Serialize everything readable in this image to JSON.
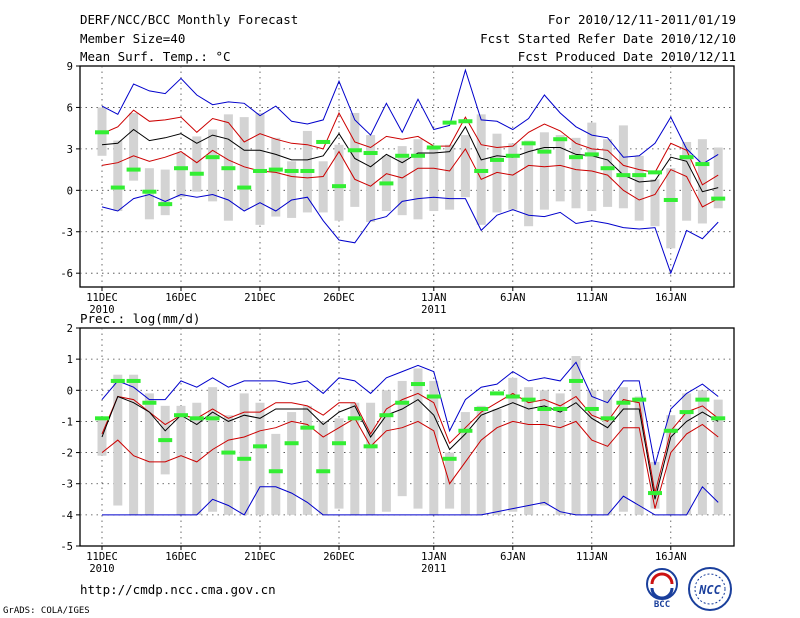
{
  "header": {
    "title": "DERF/NCC/BCC Monthly Forecast",
    "member_size": "Member Size=40",
    "variable": "Mean Surf. Temp.: °C",
    "period": "For 2010/12/11-2011/01/19",
    "started": "Fcst Started Refer Date 2010/12/10",
    "produced": "Fcst Produced Date 2010/12/11"
  },
  "footer": {
    "url": "http://cmdp.ncc.cma.gov.cn",
    "grads": "GrADS: COLA/IGES",
    "logo_bcc": "BCC",
    "logo_ncc": "NCC"
  },
  "colors": {
    "max_min": "#0000cc",
    "spread": "#cc0000",
    "mean": "#000000",
    "box": "#d3d3d3",
    "obs": "#33ee33",
    "prec_floor": "#7a007a"
  },
  "chart_data": [
    {
      "type": "box",
      "title": "Mean Surf. Temp.: °C",
      "ylim": [
        -7,
        9
      ],
      "yticks": [
        9,
        6,
        3,
        0,
        -3,
        -6
      ],
      "x_tick_labels": [
        {
          "day": 0,
          "label": "11DEC",
          "sub": "2010"
        },
        {
          "day": 5,
          "label": "16DEC",
          "sub": ""
        },
        {
          "day": 10,
          "label": "21DEC",
          "sub": ""
        },
        {
          "day": 15,
          "label": "26DEC",
          "sub": ""
        },
        {
          "day": 21,
          "label": "1JAN",
          "sub": "2011"
        },
        {
          "day": 26,
          "label": "6JAN",
          "sub": ""
        },
        {
          "day": 31,
          "label": "11JAN",
          "sub": ""
        },
        {
          "day": 36,
          "label": "16JAN",
          "sub": ""
        }
      ],
      "series": [
        {
          "name": "max",
          "values": [
            6.1,
            5.5,
            7.7,
            7.2,
            7.0,
            8.1,
            6.9,
            6.2,
            6.4,
            6.3,
            5.4,
            6.1,
            5.0,
            4.8,
            5.1,
            7.9,
            5.1,
            4.0,
            6.3,
            4.2,
            6.6,
            4.4,
            4.7,
            8.7,
            5.1,
            5.0,
            4.4,
            5.2,
            6.9,
            5.6,
            4.6,
            4.0,
            3.8,
            2.4,
            2.5,
            3.4,
            5.3,
            3.0,
            1.9,
            2.6
          ]
        },
        {
          "name": "upper",
          "values": [
            4.1,
            4.6,
            5.8,
            5.0,
            5.1,
            5.3,
            4.2,
            5.2,
            4.9,
            3.5,
            4.1,
            3.7,
            3.4,
            3.3,
            3.0,
            5.6,
            3.5,
            3.1,
            3.9,
            3.7,
            3.9,
            3.2,
            3.2,
            5.3,
            3.3,
            3.1,
            3.2,
            4.2,
            4.8,
            4.3,
            3.4,
            3.0,
            2.9,
            1.8,
            1.5,
            1.3,
            3.4,
            2.9,
            0.4,
            1.1
          ]
        },
        {
          "name": "mean",
          "values": [
            3.3,
            3.4,
            4.4,
            3.6,
            3.8,
            4.1,
            3.4,
            4.0,
            3.7,
            2.9,
            2.9,
            2.6,
            2.2,
            2.2,
            2.5,
            4.1,
            2.3,
            1.7,
            2.6,
            2.0,
            2.7,
            2.7,
            2.8,
            4.6,
            2.2,
            2.5,
            2.4,
            2.8,
            3.1,
            3.1,
            2.6,
            2.5,
            2.2,
            1.1,
            0.6,
            0.7,
            2.4,
            2.1,
            -0.1,
            0.2
          ]
        },
        {
          "name": "lower",
          "values": [
            1.8,
            2.0,
            2.5,
            2.1,
            2.4,
            2.8,
            2.0,
            2.9,
            2.2,
            1.7,
            1.4,
            1.3,
            1.0,
            0.9,
            1.0,
            2.8,
            0.8,
            0.3,
            1.2,
            0.9,
            1.6,
            1.6,
            1.4,
            3.0,
            0.8,
            1.3,
            1.1,
            1.8,
            1.7,
            1.8,
            1.5,
            1.4,
            1.1,
            0.0,
            -0.7,
            -0.3,
            1.5,
            1.0,
            -1.2,
            -0.6
          ]
        },
        {
          "name": "min",
          "values": [
            -1.2,
            -1.5,
            -0.6,
            -0.3,
            -0.8,
            -0.3,
            -0.5,
            -0.3,
            -0.7,
            -1.5,
            -0.9,
            -1.5,
            -0.7,
            -0.5,
            -2.2,
            -3.6,
            -3.8,
            -2.2,
            -1.9,
            -0.8,
            -0.6,
            -0.5,
            -0.6,
            -0.6,
            -2.9,
            -1.8,
            -1.4,
            -1.8,
            -1.9,
            -1.6,
            -2.4,
            -2.2,
            -2.4,
            -2.7,
            -2.8,
            -2.7,
            -6.0,
            -2.9,
            -3.5,
            -2.3
          ]
        },
        {
          "name": "box_high",
          "values": [
            6.0,
            3.6,
            5.6,
            1.6,
            1.5,
            2.7,
            3.9,
            4.4,
            5.5,
            5.3,
            5.6,
            3.8,
            2.1,
            4.3,
            2.1,
            3.3,
            5.6,
            4.0,
            2.5,
            3.2,
            3.7,
            3.2,
            3.3,
            4.0,
            5.5,
            4.1,
            3.4,
            3.6,
            4.2,
            4.0,
            3.8,
            4.9,
            3.7,
            4.7,
            2.5,
            0.8,
            1.6,
            3.5,
            3.7,
            3.1
          ]
        },
        {
          "name": "box_low",
          "values": [
            2.5,
            -1.5,
            0.7,
            -2.1,
            -1.8,
            -0.5,
            -0.1,
            -0.8,
            -2.2,
            -1.4,
            -2.5,
            -1.9,
            -2.0,
            -1.6,
            -1.6,
            -2.2,
            -1.2,
            -2.3,
            -1.5,
            -1.8,
            -2.1,
            -1.5,
            -1.4,
            -0.5,
            -2.5,
            -1.6,
            -1.4,
            -2.6,
            -1.4,
            -0.8,
            -1.3,
            -1.5,
            -1.2,
            -1.3,
            -2.2,
            -2.6,
            -4.2,
            -2.2,
            -2.4,
            -1.3
          ]
        },
        {
          "name": "obs",
          "values": [
            4.2,
            0.2,
            1.5,
            -0.1,
            -1.0,
            1.6,
            1.2,
            2.4,
            1.6,
            0.2,
            1.4,
            1.5,
            1.4,
            1.4,
            3.5,
            0.3,
            2.9,
            2.7,
            0.5,
            2.5,
            2.5,
            3.1,
            4.9,
            5.0,
            1.4,
            2.2,
            2.5,
            3.4,
            2.8,
            3.7,
            2.4,
            2.6,
            1.6,
            1.1,
            1.1,
            1.3,
            -0.7,
            2.4,
            1.9,
            -0.6
          ]
        }
      ]
    },
    {
      "type": "box",
      "title": "Prec.: log(mm/d)",
      "ylim": [
        -5,
        2
      ],
      "yticks": [
        2,
        1,
        0,
        -1,
        -2,
        -3,
        -4,
        -5
      ],
      "x_tick_labels": [
        {
          "day": 0,
          "label": "11DEC",
          "sub": "2010"
        },
        {
          "day": 5,
          "label": "16DEC",
          "sub": ""
        },
        {
          "day": 10,
          "label": "21DEC",
          "sub": ""
        },
        {
          "day": 15,
          "label": "26DEC",
          "sub": ""
        },
        {
          "day": 21,
          "label": "1JAN",
          "sub": "2011"
        },
        {
          "day": 26,
          "label": "6JAN",
          "sub": ""
        },
        {
          "day": 31,
          "label": "11JAN",
          "sub": ""
        },
        {
          "day": 36,
          "label": "16JAN",
          "sub": ""
        }
      ],
      "series": [
        {
          "name": "max",
          "values": [
            -0.3,
            0.3,
            0.1,
            -0.3,
            -0.3,
            0.3,
            0.1,
            0.4,
            0.1,
            0.3,
            0.3,
            0.3,
            0.2,
            0.3,
            -0.1,
            0.4,
            0.3,
            -0.1,
            0.4,
            0.6,
            0.8,
            0.6,
            -1.3,
            -0.3,
            0.1,
            0.2,
            0.6,
            0.3,
            0.4,
            0.3,
            0.9,
            -0.2,
            -0.4,
            0.3,
            0.3,
            -2.4,
            -0.6,
            -0.1,
            0.2,
            -0.2
          ]
        },
        {
          "name": "upper",
          "values": [
            -1.4,
            -0.2,
            -0.3,
            -0.7,
            -1.1,
            -0.8,
            -0.9,
            -0.6,
            -0.9,
            -0.7,
            -0.7,
            -0.4,
            -0.4,
            -0.5,
            -0.8,
            -0.4,
            -0.4,
            -1.4,
            -0.6,
            -0.3,
            -0.1,
            -0.4,
            -1.7,
            -1.2,
            -0.7,
            -0.4,
            -0.1,
            -0.4,
            -0.3,
            -0.5,
            -0.2,
            -0.8,
            -1.0,
            -0.3,
            -0.4,
            -3.3,
            -1.3,
            -0.7,
            -0.5,
            -0.9
          ]
        },
        {
          "name": "mean",
          "values": [
            -1.5,
            -0.2,
            -0.4,
            -0.7,
            -1.3,
            -0.8,
            -1.1,
            -0.7,
            -1.0,
            -0.8,
            -0.9,
            -0.6,
            -0.6,
            -0.6,
            -1.1,
            -0.7,
            -0.5,
            -1.5,
            -0.8,
            -0.6,
            -0.3,
            -0.8,
            -1.9,
            -1.4,
            -0.8,
            -0.6,
            -0.4,
            -0.6,
            -0.5,
            -0.7,
            -0.4,
            -0.9,
            -1.2,
            -0.6,
            -0.6,
            -3.5,
            -1.5,
            -1.0,
            -0.7,
            -1.0
          ]
        },
        {
          "name": "lower",
          "values": [
            -2.0,
            -1.6,
            -2.1,
            -2.3,
            -2.3,
            -2.1,
            -2.3,
            -1.9,
            -1.6,
            -1.5,
            -1.3,
            -1.2,
            -1.0,
            -1.1,
            -1.5,
            -1.2,
            -0.9,
            -1.8,
            -1.3,
            -1.2,
            -1.0,
            -1.3,
            -3.0,
            -2.3,
            -1.6,
            -1.2,
            -1.0,
            -1.1,
            -1.1,
            -1.2,
            -1.0,
            -1.6,
            -1.8,
            -1.2,
            -1.2,
            -3.8,
            -2.0,
            -1.4,
            -1.1,
            -1.5
          ]
        },
        {
          "name": "min",
          "values": [
            -4.0,
            -4.0,
            -4.0,
            -4.0,
            -4.0,
            -4.0,
            -4.0,
            -3.5,
            -3.7,
            -4.0,
            -3.1,
            -3.1,
            -3.3,
            -3.6,
            -4.0,
            -4.0,
            -4.0,
            -4.0,
            -4.0,
            -4.0,
            -4.0,
            -4.0,
            -4.0,
            -4.0,
            -4.0,
            -3.9,
            -3.8,
            -3.7,
            -3.6,
            -3.9,
            -4.0,
            -4.0,
            -4.0,
            -3.4,
            -3.7,
            -4.0,
            -4.0,
            -4.0,
            -3.1,
            -3.6
          ]
        },
        {
          "name": "box_high",
          "values": [
            -0.9,
            0.5,
            0.5,
            -0.1,
            -0.5,
            -0.5,
            -0.4,
            0.1,
            -0.8,
            -0.1,
            -0.4,
            -1.4,
            -0.7,
            -0.5,
            -1.0,
            -0.9,
            -0.4,
            -0.4,
            0.0,
            0.3,
            0.7,
            0.3,
            -2.0,
            -0.7,
            -0.5,
            -0.6,
            0.4,
            0.1,
            0.0,
            -0.1,
            1.1,
            0.0,
            0.0,
            0.1,
            -0.2,
            -2.3,
            -0.8,
            -0.1,
            0.0,
            -0.3
          ]
        },
        {
          "name": "box_low",
          "values": [
            -2.1,
            -3.7,
            -4.0,
            -4.0,
            -2.7,
            -4.0,
            -4.0,
            -3.9,
            -4.0,
            -4.0,
            -4.0,
            -4.0,
            -4.0,
            -4.0,
            -4.0,
            -3.8,
            -4.0,
            -4.0,
            -3.9,
            -3.4,
            -3.8,
            -4.0,
            -3.8,
            -4.0,
            -4.0,
            -4.0,
            -3.9,
            -4.0,
            -3.7,
            -4.0,
            -4.0,
            -4.0,
            -4.0,
            -3.9,
            -4.0,
            -3.8,
            -4.0,
            -4.0,
            -4.0,
            -4.0
          ]
        },
        {
          "name": "obs",
          "values": [
            -0.9,
            0.3,
            0.3,
            -0.4,
            -1.6,
            -0.8,
            -0.9,
            -0.9,
            -2.0,
            -2.2,
            -1.8,
            -2.6,
            -1.7,
            -1.2,
            -2.6,
            -1.7,
            -0.9,
            -1.8,
            -0.8,
            -0.4,
            0.2,
            -0.2,
            -2.2,
            -1.3,
            -0.6,
            -0.1,
            -0.2,
            -0.3,
            -0.6,
            -0.6,
            0.3,
            -0.6,
            -0.9,
            -0.4,
            -0.3,
            -3.3,
            -1.3,
            -0.7,
            -0.3,
            -0.9
          ]
        }
      ]
    }
  ]
}
